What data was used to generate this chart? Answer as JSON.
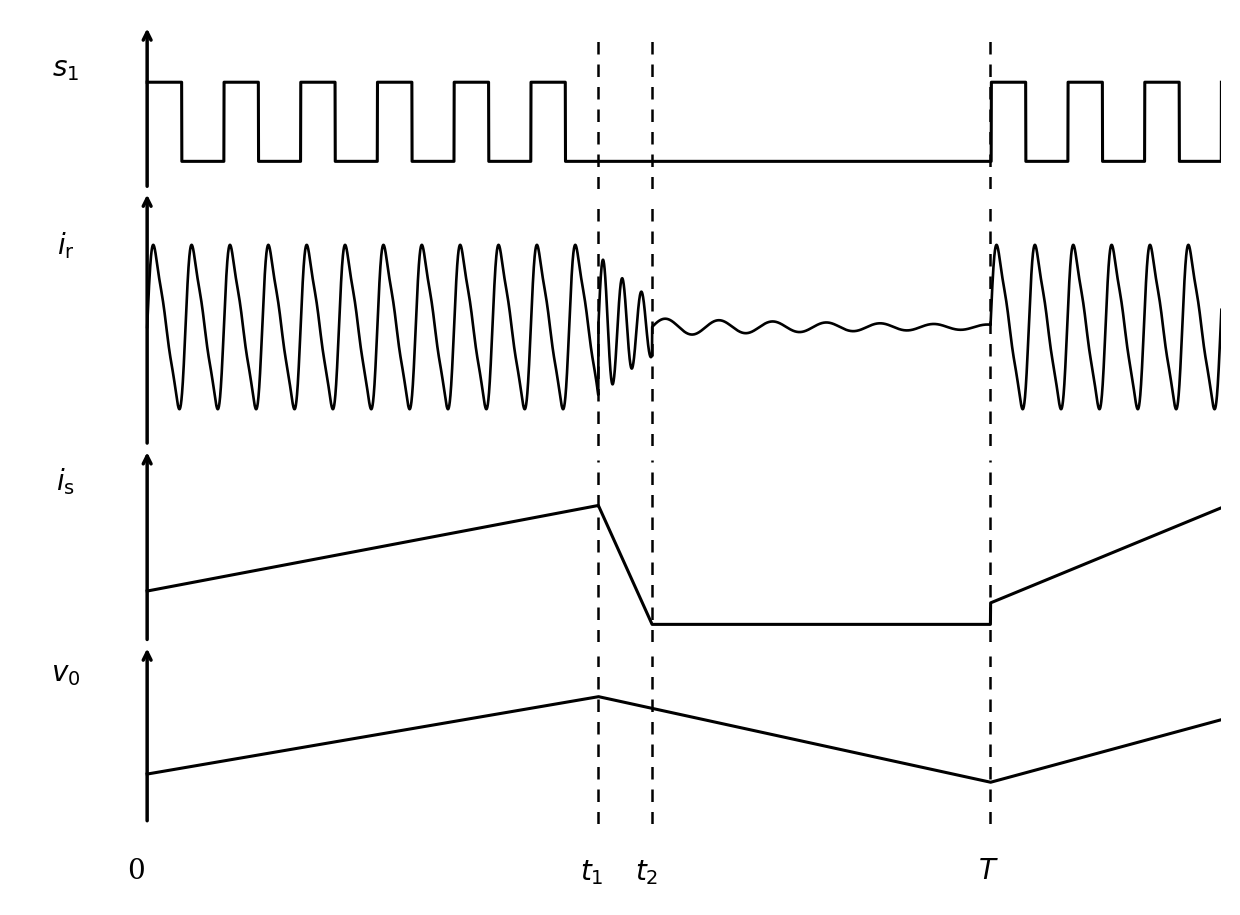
{
  "figsize": [
    12.4,
    9.15
  ],
  "dpi": 100,
  "background_color": "#ffffff",
  "t1": 0.42,
  "t2": 0.47,
  "T": 0.785,
  "total_time": 1.0,
  "labels": [
    "$s_1$",
    "$i_{\\mathrm{r}}$",
    "$i_{\\mathrm{s}}$",
    "$v_0$"
  ],
  "xlabel_labels": [
    "0",
    "$t_1$",
    "$t_2$",
    "$T$"
  ],
  "line_color": "#000000",
  "dashed_color": "#000000",
  "square_wave_freq": 14,
  "square_wave_duty": 0.45,
  "resonant_freq": 28,
  "resonant_amp": 0.38,
  "resonant_decay": 18.0,
  "resonant_decay2": 4.0,
  "lw_signal": 2.2,
  "lw_axis": 2.5,
  "arrow_size": 14,
  "label_fontsize": 20
}
